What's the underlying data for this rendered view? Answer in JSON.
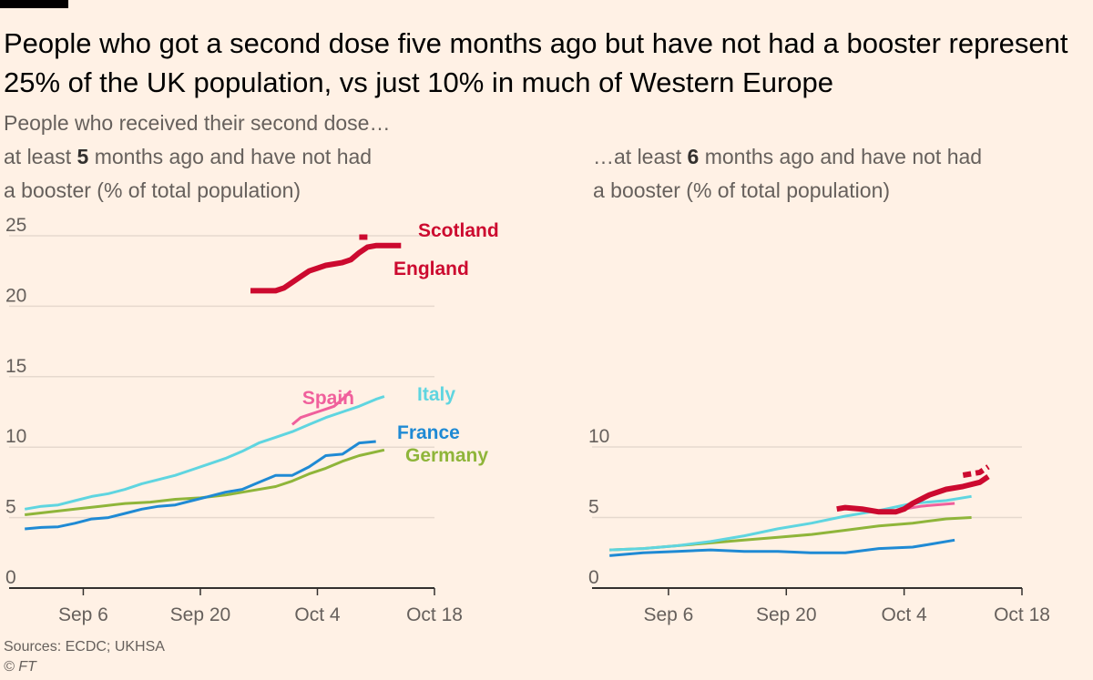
{
  "title": "People who got a second dose five months ago but have not had a booster represent 25% of the UK population, vs just 10% in much of Western Europe",
  "subtitle_left": {
    "line1": "People who received their second dose…",
    "line2_pre": "at least ",
    "line2_bold": "5",
    "line2_post": " months ago and have not had",
    "line3": "a booster (% of total population)"
  },
  "subtitle_right": {
    "line1_pre": "…at least ",
    "line1_bold": "6",
    "line1_post": " months ago and have not had",
    "line2": "a booster (% of total population)"
  },
  "source": "Sources: ECDC; UKHSA",
  "copyright": "© FT",
  "colors": {
    "background": "#fff1e5",
    "Scotland": "#cc0a2f",
    "England": "#cc0a2f",
    "Spain": "#f0609c",
    "Italy": "#5fd5e0",
    "France": "#1f8ad4",
    "Germany": "#8fb53a"
  },
  "chart_data": [
    {
      "type": "line",
      "xlabel": "",
      "ylabel": "",
      "x_unit": "date",
      "xlim": [
        "2021-08-29",
        "2021-10-18"
      ],
      "ylim": [
        0,
        25
      ],
      "y_ticks": [
        0,
        5,
        10,
        15,
        20,
        25
      ],
      "x_ticks": [
        {
          "date": "2021-09-06",
          "label": "Sep 6"
        },
        {
          "date": "2021-09-20",
          "label": "Sep 20"
        },
        {
          "date": "2021-10-04",
          "label": "Oct 4"
        },
        {
          "date": "2021-10-18",
          "label": "Oct 18"
        }
      ],
      "series": [
        {
          "name": "Scotland",
          "dashed": true,
          "x": [
            "2021-10-09",
            "2021-10-10"
          ],
          "y": [
            24.9,
            24.9
          ]
        },
        {
          "name": "England",
          "x": [
            "2021-09-26",
            "2021-09-27",
            "2021-09-28",
            "2021-09-29",
            "2021-09-30",
            "2021-10-01",
            "2021-10-02",
            "2021-10-03",
            "2021-10-04",
            "2021-10-05",
            "2021-10-06",
            "2021-10-07",
            "2021-10-08",
            "2021-10-09",
            "2021-10-10",
            "2021-10-11",
            "2021-10-12",
            "2021-10-13",
            "2021-10-14"
          ],
          "y": [
            21.1,
            21.1,
            21.1,
            21.1,
            21.3,
            21.7,
            22.1,
            22.5,
            22.7,
            22.9,
            23.0,
            23.1,
            23.3,
            23.8,
            24.2,
            24.3,
            24.3,
            24.3,
            24.3
          ]
        },
        {
          "name": "Spain",
          "x": [
            "2021-10-01",
            "2021-10-02",
            "2021-10-03",
            "2021-10-04",
            "2021-10-05",
            "2021-10-06",
            "2021-10-07",
            "2021-10-08"
          ],
          "y": [
            11.6,
            12.1,
            12.3,
            12.5,
            12.7,
            12.9,
            13.4,
            14.0
          ]
        },
        {
          "name": "Italy",
          "x": [
            "2021-08-30",
            "2021-09-01",
            "2021-09-03",
            "2021-09-05",
            "2021-09-07",
            "2021-09-09",
            "2021-09-11",
            "2021-09-13",
            "2021-09-15",
            "2021-09-17",
            "2021-09-19",
            "2021-09-21",
            "2021-09-23",
            "2021-09-25",
            "2021-09-27",
            "2021-09-29",
            "2021-10-01",
            "2021-10-03",
            "2021-10-05",
            "2021-10-07",
            "2021-10-09",
            "2021-10-11",
            "2021-10-12"
          ],
          "y": [
            5.6,
            5.8,
            5.9,
            6.2,
            6.5,
            6.7,
            7.0,
            7.4,
            7.7,
            8.0,
            8.4,
            8.8,
            9.2,
            9.7,
            10.3,
            10.7,
            11.1,
            11.6,
            12.1,
            12.5,
            12.9,
            13.4,
            13.6
          ]
        },
        {
          "name": "France",
          "x": [
            "2021-08-30",
            "2021-09-01",
            "2021-09-03",
            "2021-09-05",
            "2021-09-07",
            "2021-09-09",
            "2021-09-11",
            "2021-09-13",
            "2021-09-15",
            "2021-09-17",
            "2021-09-19",
            "2021-09-21",
            "2021-09-23",
            "2021-09-25",
            "2021-09-27",
            "2021-09-29",
            "2021-10-01",
            "2021-10-03",
            "2021-10-05",
            "2021-10-07",
            "2021-10-09",
            "2021-10-11"
          ],
          "y": [
            4.2,
            4.3,
            4.35,
            4.6,
            4.9,
            5.0,
            5.3,
            5.6,
            5.8,
            5.9,
            6.2,
            6.5,
            6.8,
            7.0,
            7.5,
            8.0,
            8.0,
            8.6,
            9.4,
            9.5,
            10.3,
            10.4
          ]
        },
        {
          "name": "Germany",
          "x": [
            "2021-08-30",
            "2021-09-02",
            "2021-09-05",
            "2021-09-08",
            "2021-09-11",
            "2021-09-14",
            "2021-09-17",
            "2021-09-20",
            "2021-09-23",
            "2021-09-26",
            "2021-09-29",
            "2021-10-01",
            "2021-10-03",
            "2021-10-05",
            "2021-10-07",
            "2021-10-09",
            "2021-10-12"
          ],
          "y": [
            5.2,
            5.4,
            5.6,
            5.8,
            6.0,
            6.1,
            6.3,
            6.4,
            6.6,
            6.9,
            7.2,
            7.6,
            8.1,
            8.5,
            9.0,
            9.4,
            9.8
          ]
        }
      ],
      "labels": [
        {
          "series": "Scotland",
          "text": "Scotland"
        },
        {
          "series": "England",
          "text": "England"
        },
        {
          "series": "Spain",
          "text": "Spain"
        },
        {
          "series": "Italy",
          "text": "Italy"
        },
        {
          "series": "France",
          "text": "France"
        },
        {
          "series": "Germany",
          "text": "Germany"
        }
      ]
    },
    {
      "type": "line",
      "xlabel": "",
      "ylabel": "",
      "x_unit": "date",
      "xlim": [
        "2021-08-29",
        "2021-10-18"
      ],
      "ylim": [
        0,
        10
      ],
      "y_ticks": [
        0,
        5,
        10
      ],
      "x_ticks": [
        {
          "date": "2021-09-06",
          "label": "Sep 6"
        },
        {
          "date": "2021-09-20",
          "label": "Sep 20"
        },
        {
          "date": "2021-10-04",
          "label": "Oct 4"
        },
        {
          "date": "2021-10-18",
          "label": "Oct 18"
        }
      ],
      "series": [
        {
          "name": "Scotland",
          "dashed": true,
          "x": [
            "2021-10-11",
            "2021-10-13",
            "2021-10-14"
          ],
          "y": [
            8.0,
            8.2,
            8.6
          ]
        },
        {
          "name": "England",
          "x": [
            "2021-09-26",
            "2021-09-27",
            "2021-09-29",
            "2021-10-01",
            "2021-10-03",
            "2021-10-04",
            "2021-10-05",
            "2021-10-07",
            "2021-10-09",
            "2021-10-11",
            "2021-10-13",
            "2021-10-14"
          ],
          "y": [
            5.6,
            5.7,
            5.6,
            5.4,
            5.4,
            5.6,
            6.0,
            6.6,
            7.0,
            7.2,
            7.5,
            7.9
          ]
        },
        {
          "name": "Spain",
          "x": [
            "2021-10-04",
            "2021-10-06",
            "2021-10-08",
            "2021-10-10"
          ],
          "y": [
            5.6,
            5.8,
            5.9,
            6.0
          ]
        },
        {
          "name": "Italy",
          "x": [
            "2021-08-30",
            "2021-09-03",
            "2021-09-07",
            "2021-09-11",
            "2021-09-15",
            "2021-09-19",
            "2021-09-23",
            "2021-09-27",
            "2021-10-01",
            "2021-10-05",
            "2021-10-09",
            "2021-10-12"
          ],
          "y": [
            2.7,
            2.8,
            3.0,
            3.3,
            3.7,
            4.2,
            4.6,
            5.1,
            5.5,
            6.0,
            6.2,
            6.5
          ]
        },
        {
          "name": "France",
          "x": [
            "2021-08-30",
            "2021-09-03",
            "2021-09-07",
            "2021-09-11",
            "2021-09-15",
            "2021-09-19",
            "2021-09-23",
            "2021-09-27",
            "2021-10-01",
            "2021-10-05",
            "2021-10-07",
            "2021-10-10"
          ],
          "y": [
            2.3,
            2.5,
            2.6,
            2.7,
            2.6,
            2.6,
            2.5,
            2.5,
            2.8,
            2.9,
            3.1,
            3.4
          ]
        },
        {
          "name": "Germany",
          "x": [
            "2021-08-30",
            "2021-09-03",
            "2021-09-07",
            "2021-09-11",
            "2021-09-15",
            "2021-09-19",
            "2021-09-23",
            "2021-09-27",
            "2021-10-01",
            "2021-10-05",
            "2021-10-09",
            "2021-10-12"
          ],
          "y": [
            2.7,
            2.8,
            3.0,
            3.2,
            3.4,
            3.6,
            3.8,
            4.1,
            4.4,
            4.6,
            4.9,
            5.0
          ]
        }
      ],
      "labels": []
    }
  ]
}
